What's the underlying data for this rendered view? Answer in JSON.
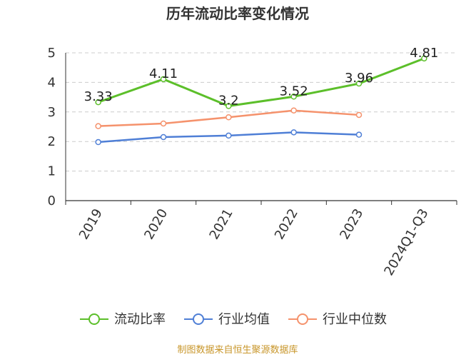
{
  "chart_data": {
    "type": "line",
    "title": "历年流动比率变化情况",
    "categories": [
      "2019",
      "2020",
      "2021",
      "2022",
      "2023",
      "2024Q1-Q3"
    ],
    "ylim": [
      0,
      5
    ],
    "yticks": [
      "0",
      "1",
      "2",
      "3",
      "4",
      "5"
    ],
    "grid": true,
    "legend_position": "bottom",
    "series": [
      {
        "name": "流动比率",
        "color": "#5cbf2a",
        "values": [
          3.33,
          4.11,
          3.2,
          3.52,
          3.96,
          4.81
        ],
        "labels": [
          "3.33",
          "4.11",
          "3.2",
          "3.52",
          "3.96",
          "4.81"
        ]
      },
      {
        "name": "行业均值",
        "color": "#4f7fd6",
        "values": [
          1.98,
          2.15,
          2.2,
          2.31,
          2.23,
          null
        ]
      },
      {
        "name": "行业中位数",
        "color": "#f5926c",
        "values": [
          2.52,
          2.61,
          2.82,
          3.05,
          2.9,
          null
        ]
      }
    ],
    "source": "制图数据来自恒生聚源数据库"
  }
}
